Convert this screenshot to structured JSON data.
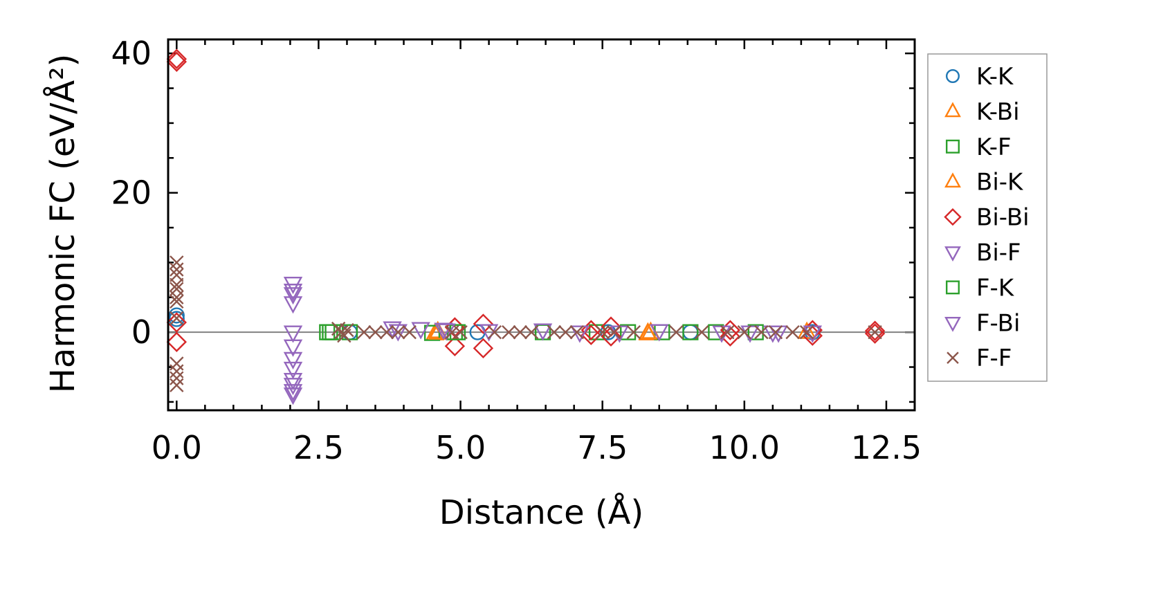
{
  "chart_data": {
    "type": "scatter",
    "title": "",
    "xlabel": "Distance (Å)",
    "ylabel": "Harmonic FC (eV/Å²)",
    "xlim": [
      -0.15,
      13.0
    ],
    "ylim": [
      -11.2,
      42.0
    ],
    "xticks": [
      {
        "value": 0.0,
        "label": "0.0"
      },
      {
        "value": 2.5,
        "label": "2.5"
      },
      {
        "value": 5.0,
        "label": "5.0"
      },
      {
        "value": 7.5,
        "label": "7.5"
      },
      {
        "value": 10.0,
        "label": "10.0"
      },
      {
        "value": 12.5,
        "label": "12.5"
      }
    ],
    "yticks": [
      {
        "value": 0,
        "label": "0"
      },
      {
        "value": 20,
        "label": "20"
      },
      {
        "value": 40,
        "label": "40"
      }
    ],
    "reference_line_y": 0,
    "grid": false,
    "legend_position": "outside-right",
    "series": [
      {
        "name": "K-K",
        "marker": "circle",
        "color": "#1f77b4",
        "points": [
          [
            0.0,
            2.4
          ],
          [
            0.0,
            1.9
          ],
          [
            3.05,
            0.0
          ],
          [
            5.3,
            0.0
          ],
          [
            7.6,
            0.0
          ],
          [
            9.05,
            0.0
          ],
          [
            11.2,
            0.0
          ]
        ]
      },
      {
        "name": "K-Bi",
        "marker": "triangle-up",
        "color": "#ff7f0e",
        "points": [
          [
            4.55,
            -0.2
          ],
          [
            4.6,
            0.1
          ],
          [
            8.3,
            -0.2
          ],
          [
            8.35,
            0.0
          ],
          [
            11.1,
            0.0
          ]
        ]
      },
      {
        "name": "K-F",
        "marker": "square",
        "color": "#2ca02c",
        "points": [
          [
            2.65,
            0.0
          ],
          [
            2.75,
            0.0
          ],
          [
            3.05,
            0.0
          ],
          [
            4.5,
            -0.1
          ],
          [
            4.9,
            0.0
          ],
          [
            6.45,
            0.0
          ],
          [
            7.4,
            0.0
          ],
          [
            7.95,
            0.0
          ],
          [
            8.55,
            0.0
          ],
          [
            9.05,
            0.0
          ],
          [
            9.5,
            0.0
          ],
          [
            10.2,
            0.0
          ]
        ]
      },
      {
        "name": "Bi-K",
        "marker": "triangle-up",
        "color": "#ff7f0e",
        "points": [
          [
            4.6,
            -0.1
          ],
          [
            8.3,
            -0.1
          ]
        ]
      },
      {
        "name": "Bi-Bi",
        "marker": "diamond",
        "color": "#d62728",
        "points": [
          [
            0.0,
            39.2
          ],
          [
            0.0,
            38.8
          ],
          [
            0.0,
            1.4
          ],
          [
            0.0,
            -1.4
          ],
          [
            4.9,
            0.7
          ],
          [
            4.9,
            -2.0
          ],
          [
            5.4,
            1.2
          ],
          [
            5.4,
            -2.3
          ],
          [
            7.3,
            0.3
          ],
          [
            7.3,
            -0.4
          ],
          [
            7.65,
            0.8
          ],
          [
            7.65,
            -0.6
          ],
          [
            9.75,
            0.3
          ],
          [
            9.75,
            -0.6
          ],
          [
            11.2,
            0.3
          ],
          [
            11.2,
            -0.5
          ],
          [
            12.3,
            0.2
          ],
          [
            12.3,
            -0.2
          ]
        ]
      },
      {
        "name": "Bi-F",
        "marker": "triangle-down",
        "color": "#9467bd",
        "points": [
          [
            2.05,
            7.0
          ],
          [
            2.05,
            5.5
          ],
          [
            2.05,
            4.2
          ],
          [
            2.05,
            0.0
          ],
          [
            2.05,
            -2.0
          ],
          [
            2.05,
            -3.8
          ],
          [
            2.05,
            -5.2
          ],
          [
            2.05,
            -6.8
          ],
          [
            2.05,
            -8.4
          ],
          [
            2.05,
            -8.9
          ],
          [
            3.8,
            0.6
          ],
          [
            3.9,
            0.2
          ],
          [
            4.3,
            0.5
          ],
          [
            4.7,
            0.4
          ],
          [
            5.5,
            0.2
          ],
          [
            6.45,
            0.3
          ],
          [
            7.1,
            0.0
          ],
          [
            7.8,
            0.0
          ],
          [
            8.5,
            0.2
          ],
          [
            9.6,
            0.0
          ],
          [
            10.1,
            0.0
          ],
          [
            10.5,
            0.0
          ],
          [
            11.2,
            0.0
          ]
        ]
      },
      {
        "name": "F-K",
        "marker": "square",
        "color": "#2ca02c",
        "points": [
          [
            2.7,
            0.0
          ],
          [
            4.95,
            0.0
          ]
        ]
      },
      {
        "name": "F-Bi",
        "marker": "triangle-down",
        "color": "#9467bd",
        "points": [
          [
            2.05,
            6.0
          ],
          [
            2.05,
            -7.5
          ],
          [
            4.75,
            0.3
          ],
          [
            10.6,
            0.0
          ]
        ]
      },
      {
        "name": "F-F",
        "marker": "x",
        "color": "#8c564b",
        "points": [
          [
            0.0,
            10.0
          ],
          [
            0.0,
            9.0
          ],
          [
            0.0,
            8.2
          ],
          [
            0.0,
            6.8
          ],
          [
            0.0,
            6.2
          ],
          [
            0.0,
            5.0
          ],
          [
            0.0,
            4.4
          ],
          [
            0.0,
            2.0
          ],
          [
            0.0,
            -4.5
          ],
          [
            0.0,
            -5.6
          ],
          [
            0.0,
            -6.6
          ],
          [
            0.0,
            -7.6
          ],
          [
            2.85,
            0.5
          ],
          [
            2.9,
            0.0
          ],
          [
            2.95,
            -0.5
          ],
          [
            3.0,
            0.3
          ],
          [
            3.3,
            0.0
          ],
          [
            3.5,
            0.0
          ],
          [
            3.7,
            0.0
          ],
          [
            3.9,
            0.0
          ],
          [
            4.1,
            0.0
          ],
          [
            4.85,
            0.0
          ],
          [
            5.0,
            0.0
          ],
          [
            5.6,
            0.0
          ],
          [
            5.85,
            0.0
          ],
          [
            6.05,
            0.0
          ],
          [
            6.25,
            0.0
          ],
          [
            6.65,
            0.0
          ],
          [
            6.85,
            0.0
          ],
          [
            7.05,
            0.0
          ],
          [
            7.5,
            0.0
          ],
          [
            7.7,
            0.0
          ],
          [
            8.05,
            0.0
          ],
          [
            8.8,
            0.0
          ],
          [
            9.25,
            0.0
          ],
          [
            9.7,
            0.0
          ],
          [
            10.0,
            0.0
          ],
          [
            10.3,
            0.0
          ],
          [
            10.55,
            0.0
          ],
          [
            10.85,
            0.0
          ],
          [
            11.1,
            0.0
          ],
          [
            12.3,
            0.0
          ]
        ]
      }
    ]
  }
}
